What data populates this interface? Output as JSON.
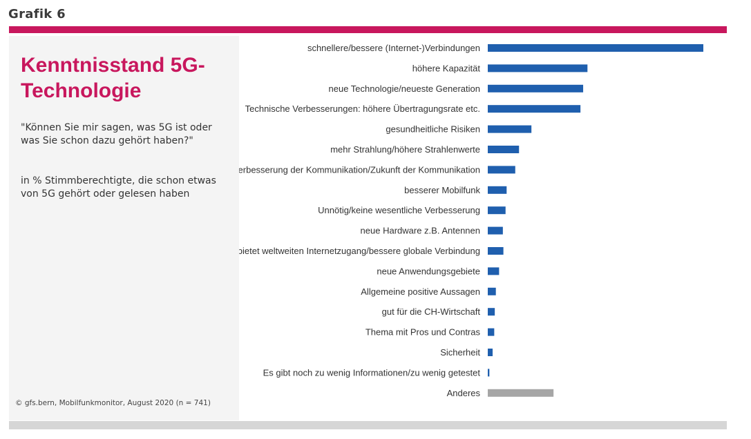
{
  "header": {
    "label": "Grafik 6"
  },
  "title": "Kenntnisstand 5G-Technologie",
  "question": "\"Können Sie mir sagen, was 5G ist oder was Sie schon dazu gehört haben?\"",
  "base_note": "in % Stimmberechtigte, die schon etwas von 5G gehört oder gelesen haben",
  "source": "© gfs.bern, Mobilfunkmonitor, August 2020 (n = 741)",
  "colors": {
    "accent": "#c8175d",
    "bar": "#1f5fae",
    "bar_other": "#a6a6a6",
    "bottom_bar": "#d6d6d6"
  },
  "chart_data": {
    "type": "bar",
    "orientation": "horizontal",
    "categories": [
      "schnellere/bessere (Internet-)Verbindungen",
      "höhere Kapazität",
      "neue Technologie/neueste Generation",
      "Technische Verbesserungen: höhere Übertragungsrate etc.",
      "gesundheitliche Risiken",
      "mehr Strahlung/höhere Strahlenwerte",
      "Verbesserung der Kommunikation/Zukunft der Kommunikation",
      "besserer Mobilfunk",
      "Unnötig/keine wesentliche Verbesserung",
      "neue Hardware z.B. Antennen",
      "bietet weltweiten Internetzugang/bessere globale Verbindung",
      "neue Anwendungsgebiete",
      "Allgemeine positive Aussagen",
      "gut für die CH-Wirtschaft",
      "Thema mit Pros und Contras",
      "Sicherheit",
      "Es gibt noch zu wenig Informationen/zu wenig getestet",
      "Anderes"
    ],
    "values": [
      40,
      18.5,
      17.7,
      17.2,
      8.1,
      5.8,
      5.1,
      3.5,
      3.3,
      2.8,
      2.9,
      2.1,
      1.5,
      1.3,
      1.2,
      0.9,
      0.3,
      12.2
    ],
    "highlight_last": true,
    "xlim": [
      0,
      40
    ],
    "grid": false,
    "legend": false
  }
}
